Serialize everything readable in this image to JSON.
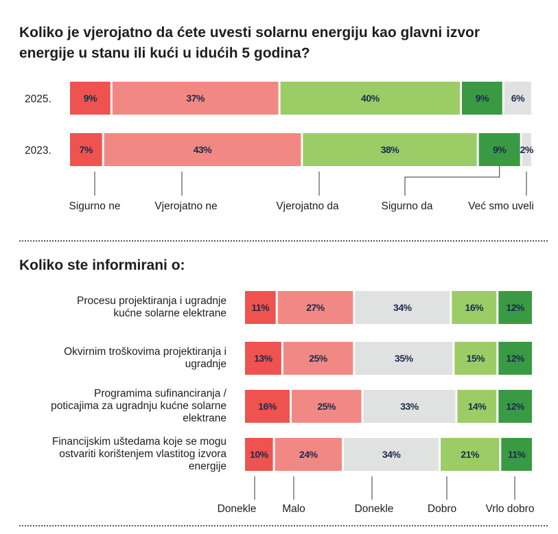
{
  "chart_data": [
    {
      "type": "bar",
      "title": "Koliko je vjerojatno da ćete uvesti solarnu energiju kao glavni izvor energije u stanu ili kući u idućih 5 godina?",
      "categories": [
        "2025.",
        "2023."
      ],
      "series": [
        {
          "name": "Sigurno ne",
          "values": [
            9,
            7
          ],
          "labels": [
            "9%",
            "7%"
          ],
          "color": "#ef5350",
          "text_color": "#1b2a4a"
        },
        {
          "name": "Vjerojatno ne",
          "values": [
            37,
            43
          ],
          "labels": [
            "37%",
            "43%"
          ],
          "color": "#f28883",
          "text_color": "#1b2a4a"
        },
        {
          "name": "Vjerojatno da",
          "values": [
            40,
            38
          ],
          "labels": [
            "40%",
            "38%"
          ],
          "color": "#9bcc66",
          "text_color": "#1b2a4a"
        },
        {
          "name": "Sigurno da",
          "values": [
            9,
            9
          ],
          "labels": [
            "9%",
            "9%"
          ],
          "color": "#3a9a43",
          "text_color": "#1b2a4a"
        },
        {
          "name": "Već smo uveli",
          "values": [
            6,
            2
          ],
          "labels": [
            "6%",
            "2%"
          ],
          "color": "#dfe2e1",
          "text_color": "#1b2a4a"
        }
      ]
    },
    {
      "type": "bar",
      "title": "Koliko ste informirani o:",
      "categories": [
        "Procesu projektiranja i ugradnje kućne solarne elektrane",
        "Okvirnim troškovima projektiranja i ugradnje",
        "Programima sufinanciranja / poticajima za ugradnju kućne solarne elektrane",
        "Financijskim uštedama koje se mogu ostvariti korištenjem vlastitog izvora energije"
      ],
      "category_lines": [
        [
          "Procesu projektiranja i ugradnje",
          "kućne solarne elektrane"
        ],
        [
          "Okvirnim troškovima projektiranja i",
          "ugradnje"
        ],
        [
          "Programima sufinanciranja /",
          "poticajima za ugradnju kućne solarne",
          "elektrane"
        ],
        [
          "Financijskim uštedama koje se mogu",
          "ostvariti korištenjem vlastitog izvora",
          "energije"
        ]
      ],
      "series": [
        {
          "name": "Donekle",
          "values": [
            11,
            13,
            16,
            10
          ],
          "labels": [
            "11%",
            "13%",
            "16%",
            "10%"
          ],
          "color": "#ef5350",
          "text_color": "#1b2a4a"
        },
        {
          "name": "Malo",
          "values": [
            27,
            25,
            25,
            24
          ],
          "labels": [
            "27%",
            "25%",
            "25%",
            "24%"
          ],
          "color": "#f28883",
          "text_color": "#1b2a4a"
        },
        {
          "name": "Donekle",
          "values": [
            34,
            35,
            33,
            34
          ],
          "labels": [
            "34%",
            "35%",
            "33%",
            "34%"
          ],
          "color": "#dfe2e1",
          "text_color": "#1b2a4a"
        },
        {
          "name": "Dobro",
          "values": [
            16,
            15,
            14,
            21
          ],
          "labels": [
            "16%",
            "15%",
            "14%",
            "21%"
          ],
          "color": "#9bcc66",
          "text_color": "#1b2a4a"
        },
        {
          "name": "Vrlo dobro",
          "values": [
            12,
            12,
            12,
            11
          ],
          "labels": [
            "12%",
            "12%",
            "12%",
            "11%"
          ],
          "color": "#3a9a43",
          "text_color": "#1b2a4a"
        }
      ]
    }
  ]
}
